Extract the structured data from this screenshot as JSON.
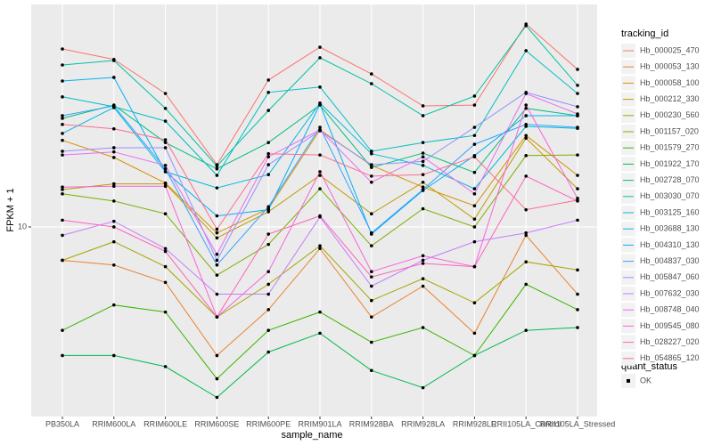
{
  "chart_data": {
    "type": "line",
    "x_label": "sample_name",
    "y_label": "FPKM + 1",
    "log_scale": true,
    "grid": true,
    "legend_title": "tracking_id",
    "legend_position": "right",
    "shape_legend": {
      "title": "quant_status",
      "labels": [
        "OK"
      ]
    },
    "categories": [
      "PB350LA",
      "RRIM600LA",
      "RRIM600LE",
      "RRIM600SE",
      "RRIM600PE",
      "RRIM901LA",
      "RRIM928BA",
      "RRIM928LA",
      "RRIM928LE",
      "RRII105LA_Control",
      "RRII105LA_Stressed"
    ],
    "ylim": [
      1.95,
      68.1
    ],
    "yticks": [
      10
    ],
    "series": [
      {
        "name": "Hb_000025_470",
        "color": "#F8766D",
        "values": [
          46.4,
          42.4,
          31.6,
          17.1,
          35.5,
          47.1,
          37.4,
          28.4,
          28.6,
          57.5,
          38.9
        ]
      },
      {
        "name": "Hb_000053_130",
        "color": "#EA8331",
        "values": [
          7.5,
          7.2,
          6.2,
          3.3,
          4.9,
          8.3,
          4.6,
          6.0,
          4.0,
          9.3,
          5.6
        ]
      },
      {
        "name": "Hb_000058_100",
        "color": "#D89000",
        "values": [
          21.1,
          18.2,
          14.6,
          9.5,
          11.7,
          23.1,
          17.0,
          14.1,
          12.0,
          22.0,
          15.6
        ]
      },
      {
        "name": "Hb_000212_330",
        "color": "#C09B00",
        "values": [
          13.8,
          14.5,
          14.5,
          9.1,
          11.4,
          15.6,
          11.2,
          14.7,
          10.7,
          21.5,
          13.9
        ]
      },
      {
        "name": "Hb_000230_560",
        "color": "#A3A500",
        "values": [
          7.5,
          8.8,
          7.1,
          4.6,
          6.1,
          8.5,
          5.3,
          6.4,
          5.2,
          7.4,
          6.9
        ]
      },
      {
        "name": "Hb_001157_020",
        "color": "#7CAE00",
        "values": [
          13.3,
          12.5,
          11.2,
          6.6,
          8.6,
          13.9,
          8.5,
          11.7,
          10.0,
          18.5,
          18.6
        ]
      },
      {
        "name": "Hb_001579_270",
        "color": "#39B600",
        "values": [
          4.1,
          5.1,
          4.8,
          2.7,
          4.1,
          4.8,
          3.7,
          4.2,
          3.3,
          6.1,
          4.9
        ]
      },
      {
        "name": "Hb_001922_170",
        "color": "#00BB4E",
        "values": [
          3.3,
          3.3,
          3.0,
          2.3,
          3.4,
          4.0,
          2.9,
          2.5,
          3.3,
          4.1,
          4.2
        ]
      },
      {
        "name": "Hb_002728_070",
        "color": "#00BF7D",
        "values": [
          25.5,
          28.6,
          20.7,
          16.5,
          20.7,
          28.6,
          16.7,
          18.9,
          16.0,
          27.8,
          26.1
        ]
      },
      {
        "name": "Hb_003030_070",
        "color": "#00C1A3",
        "values": [
          40.4,
          42.0,
          27.8,
          16.9,
          27.3,
          43.0,
          34.4,
          26.1,
          30.9,
          56.7,
          33.9
        ]
      },
      {
        "name": "Hb_003125_160",
        "color": "#00BFC4",
        "values": [
          30.7,
          28.2,
          24.9,
          15.6,
          31.9,
          33.4,
          19.2,
          20.7,
          22.0,
          45.7,
          31.6
        ]
      },
      {
        "name": "Hb_003688_130",
        "color": "#00BAE0",
        "values": [
          22.4,
          28.0,
          16.1,
          14.0,
          15.7,
          29.1,
          18.8,
          17.0,
          13.9,
          23.8,
          23.4
        ]
      },
      {
        "name": "Hb_004310_130",
        "color": "#00B0F6",
        "values": [
          35.2,
          36.3,
          16.1,
          11.0,
          11.6,
          28.8,
          9.4,
          13.7,
          18.5,
          26.1,
          26.1
        ]
      },
      {
        "name": "Hb_004837_030",
        "color": "#35A2FF",
        "values": [
          26.1,
          28.4,
          16.5,
          7.2,
          11.9,
          23.6,
          9.5,
          13.8,
          20.4,
          24.2,
          23.6
        ]
      },
      {
        "name": "Hb_005847_060",
        "color": "#9590FF",
        "values": [
          19.2,
          19.8,
          19.8,
          7.5,
          17.1,
          22.9,
          17.1,
          17.6,
          23.6,
          31.9,
          28.2
        ]
      },
      {
        "name": "Hb_007632_030",
        "color": "#C77CFF",
        "values": [
          9.3,
          10.5,
          8.3,
          5.6,
          5.6,
          10.9,
          6.0,
          7.5,
          8.8,
          9.5,
          10.6
        ]
      },
      {
        "name": "Hb_008748_040",
        "color": "#E76BF3",
        "values": [
          18.6,
          19.1,
          17.0,
          7.9,
          18.3,
          23.1,
          14.7,
          18.3,
          13.3,
          31.6,
          26.5
        ]
      },
      {
        "name": "Hb_009545_080",
        "color": "#FA62DB",
        "values": [
          14.1,
          14.2,
          14.2,
          4.6,
          6.8,
          16.1,
          6.8,
          7.8,
          7.1,
          28.6,
          12.8
        ]
      },
      {
        "name": "Hb_028227_020",
        "color": "#FF62BC",
        "values": [
          10.6,
          10.0,
          8.1,
          4.6,
          9.4,
          11.0,
          6.5,
          7.3,
          7.1,
          15.5,
          12.5
        ]
      },
      {
        "name": "Hb_054865_120",
        "color": "#FF6C91",
        "values": [
          24.2,
          23.3,
          21.2,
          9.8,
          18.8,
          18.6,
          15.5,
          15.7,
          18.3,
          11.6,
          12.6
        ]
      }
    ]
  }
}
